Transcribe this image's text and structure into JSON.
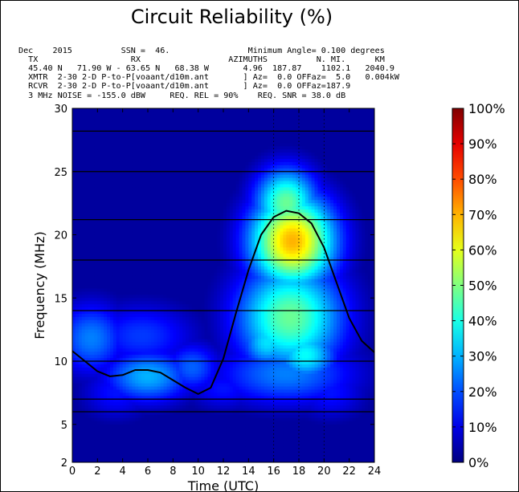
{
  "header": {
    "line1": "Dec    2015          SSN =  46.                Minimum Angle= 0.100 degrees",
    "line2": "  TX                   RX                  AZIMUTHS          N. MI.      KM",
    "line3": "  45.40 N   71.90 W - 63.65 N   68.38 W       4.96  187.87    1102.1   2040.9",
    "line4": "  XMTR  2-30 2-D P-to-P[voaant/d10m.ant       ] Az=  0.0 OFFaz=  5.0   0.004kW",
    "line5": "  RCVR  2-30 2-D P-to-P[voaant/d10m.ant       ] Az=  0.0 OFFaz=187.9",
    "line6": "  3 MHz NOISE = -155.0 dBW     REQ. REL = 90%    REQ. SNR = 38.0 dB"
  },
  "chart_data": {
    "type": "heatmap",
    "title": "Circuit Reliability (%)",
    "xlabel": "Time (UTC)",
    "ylabel": "Frequency (MHz)",
    "xlim": [
      0,
      24
    ],
    "ylim": [
      2,
      30
    ],
    "x_ticks": [
      0,
      2,
      4,
      6,
      8,
      10,
      12,
      14,
      16,
      18,
      20,
      22,
      24
    ],
    "y_ticks": [
      2,
      5,
      10,
      15,
      20,
      25,
      30
    ],
    "y_hlines": [
      6.0,
      7.0,
      10.0,
      14.0,
      18.0,
      21.2,
      25.0,
      28.2
    ],
    "x_grid_dotted": [
      16,
      18,
      20
    ],
    "colorbar": {
      "ticks": [
        0,
        10,
        20,
        30,
        40,
        50,
        60,
        70,
        80,
        90,
        100
      ],
      "tick_labels": [
        "0%",
        "10%",
        "20%",
        "30%",
        "40%",
        "50%",
        "60%",
        "70%",
        "80%",
        "90%",
        "100%"
      ],
      "colormap": "jet"
    },
    "muf_curve": {
      "hours": [
        0,
        1,
        2,
        3,
        4,
        5,
        6,
        7,
        8,
        9,
        10,
        11,
        12,
        13,
        14,
        15,
        16,
        17,
        18,
        19,
        20,
        21,
        22,
        23,
        24
      ],
      "mhz": [
        10.8,
        10.0,
        9.2,
        8.8,
        8.9,
        9.3,
        9.3,
        9.1,
        8.5,
        7.9,
        7.4,
        7.9,
        10.2,
        13.8,
        17.2,
        20.0,
        21.4,
        21.9,
        21.7,
        20.9,
        19.0,
        16.2,
        13.4,
        11.6,
        10.7
      ]
    },
    "reliability_regions": [
      {
        "center_hour": 17.5,
        "center_mhz": 19.5,
        "peak_percent": 70,
        "hour_spread": 2.4,
        "mhz_spread": 2.6
      },
      {
        "center_hour": 17.0,
        "center_mhz": 22.5,
        "peak_percent": 48,
        "hour_spread": 1.8,
        "mhz_spread": 2.0
      },
      {
        "center_hour": 17.3,
        "center_mhz": 13.5,
        "peak_percent": 48,
        "hour_spread": 3.0,
        "mhz_spread": 3.0
      },
      {
        "center_hour": 18.5,
        "center_mhz": 10.5,
        "peak_percent": 38,
        "hour_spread": 1.8,
        "mhz_spread": 1.5
      },
      {
        "center_hour": 15.5,
        "center_mhz": 11.5,
        "peak_percent": 35,
        "hour_spread": 1.5,
        "mhz_spread": 1.5
      },
      {
        "center_hour": 17.0,
        "center_mhz": 9.0,
        "peak_percent": 25,
        "hour_spread": 4.0,
        "mhz_spread": 1.8
      },
      {
        "center_hour": 6.0,
        "center_mhz": 8.8,
        "peak_percent": 30,
        "hour_spread": 2.5,
        "mhz_spread": 1.5
      },
      {
        "center_hour": 1.5,
        "center_mhz": 11.8,
        "peak_percent": 25,
        "hour_spread": 2.0,
        "mhz_spread": 2.0
      },
      {
        "center_hour": 5.5,
        "center_mhz": 12.0,
        "peak_percent": 18,
        "hour_spread": 3.0,
        "mhz_spread": 1.8
      },
      {
        "center_hour": 9.5,
        "center_mhz": 9.5,
        "peak_percent": 22,
        "hour_spread": 1.6,
        "mhz_spread": 1.4
      },
      {
        "center_hour": 3.5,
        "center_mhz": 7.5,
        "peak_percent": 14,
        "hour_spread": 2.0,
        "mhz_spread": 1.5
      },
      {
        "center_hour": 12.0,
        "center_mhz": 7.8,
        "peak_percent": 14,
        "hour_spread": 2.0,
        "mhz_spread": 1.2
      },
      {
        "center_hour": 20.5,
        "center_mhz": 7.5,
        "peak_percent": 14,
        "hour_spread": 2.0,
        "mhz_spread": 1.5
      }
    ],
    "background_percent": 3
  }
}
